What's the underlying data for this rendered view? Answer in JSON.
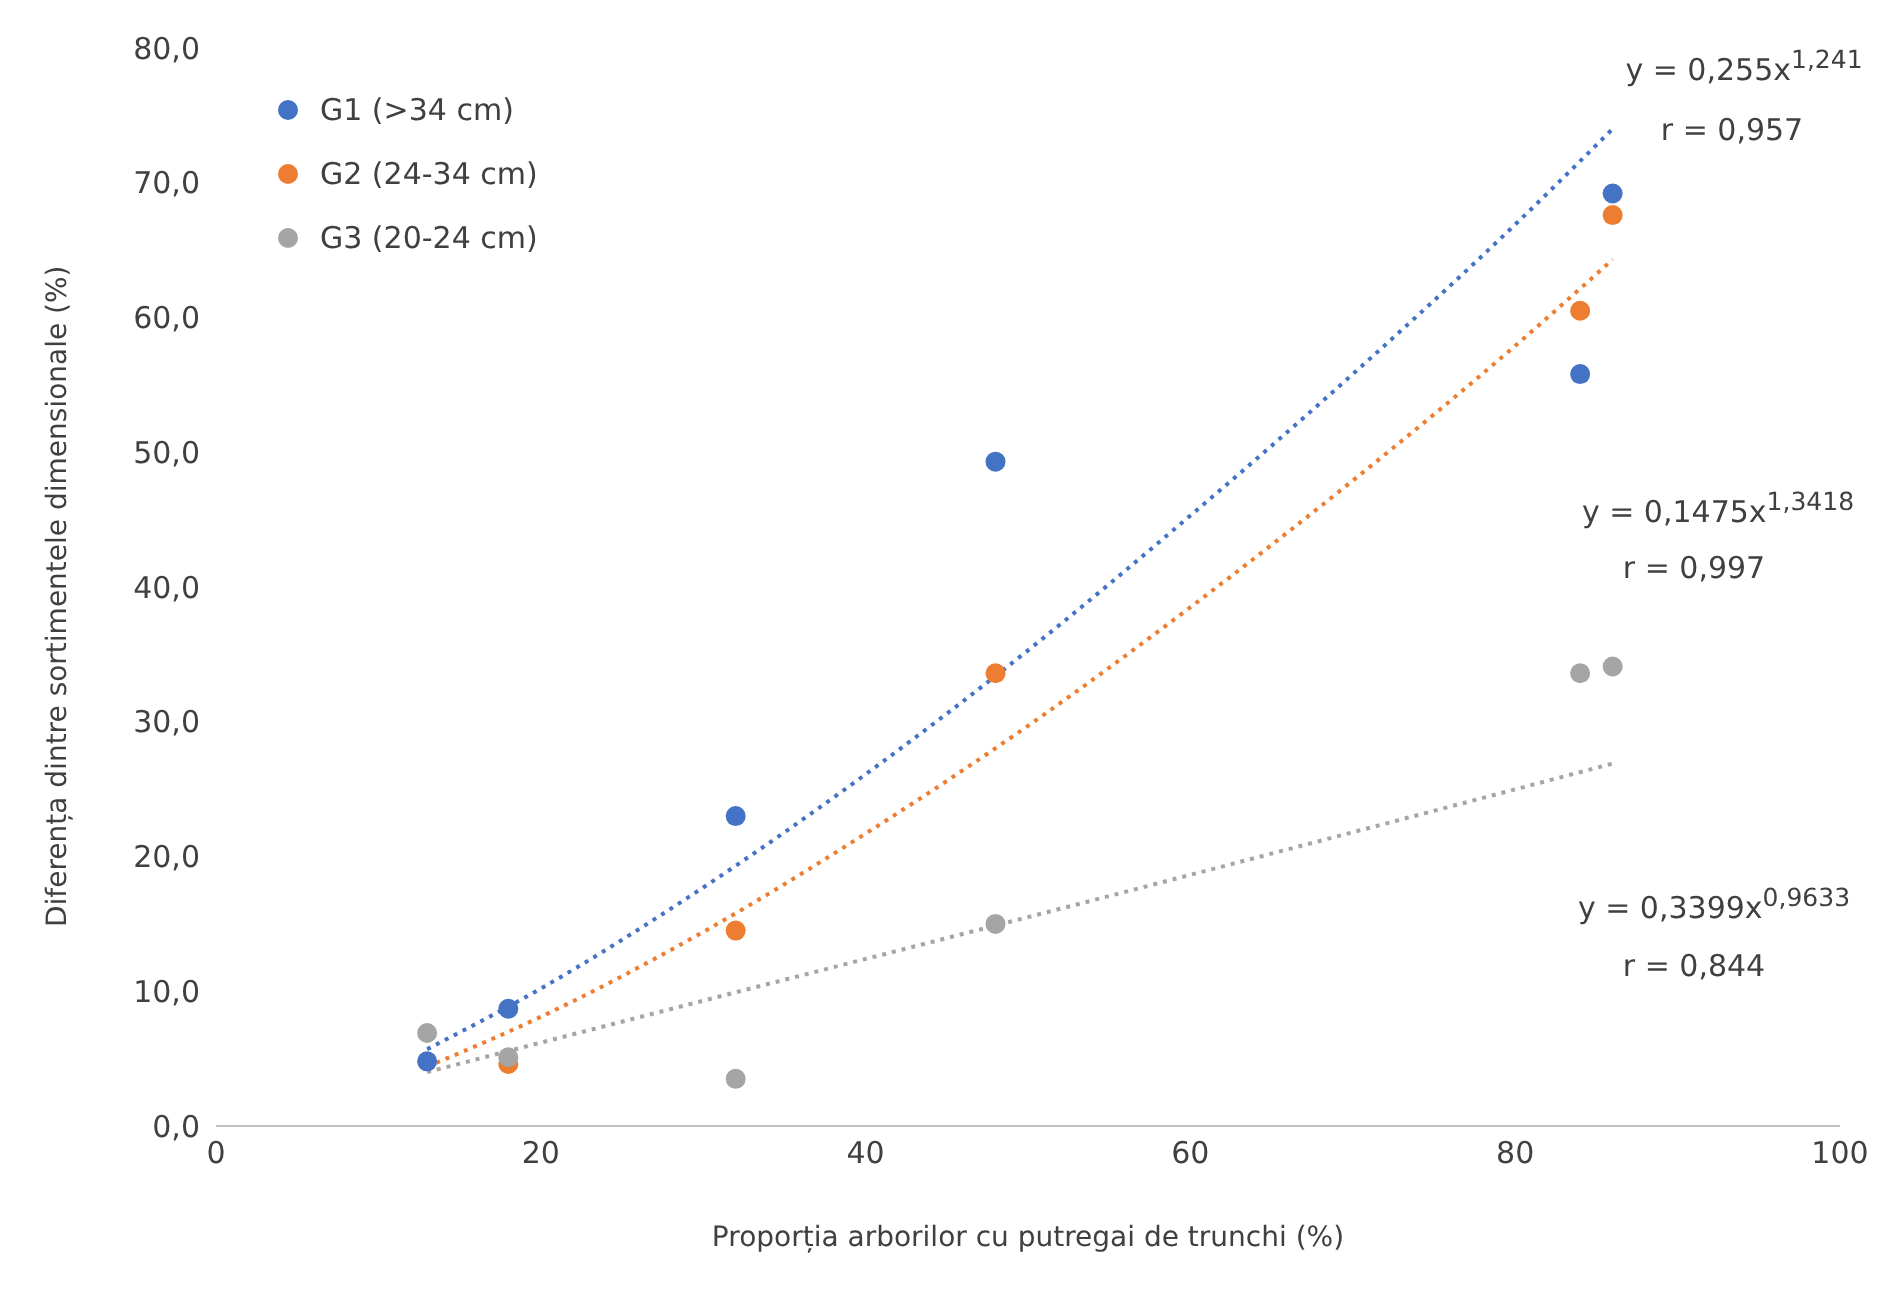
{
  "chart_data": {
    "type": "scatter",
    "xlabel": "Proporția arborilor cu putregai de trunchi (%)",
    "ylabel": "Diferența dintre sortimentele dimensionale (%)",
    "x": [
      13,
      18,
      32,
      48,
      84,
      86
    ],
    "series": [
      {
        "name": "G1 (>34 cm)",
        "color": "#4472c4",
        "values": [
          4.8,
          8.7,
          23.0,
          49.3,
          55.8,
          69.2
        ]
      },
      {
        "name": "G2 (24-34 cm)",
        "color": "#ed7d31",
        "values": [
          null,
          4.6,
          14.5,
          33.6,
          60.5,
          67.6
        ]
      },
      {
        "name": "G3 (20-24 cm)",
        "color": "#a5a5a5",
        "values": [
          6.9,
          5.1,
          3.5,
          15.0,
          33.6,
          34.1
        ]
      },
      {
        "type": "line",
        "color": "#4472c4",
        "x": [
          13,
          20,
          30,
          40,
          50,
          60,
          70,
          80,
          86
        ],
        "values": [
          5.7,
          10.2,
          17.7,
          26.1,
          35.3,
          45.3,
          55.8,
          66.9,
          74.0
        ],
        "marker": "none",
        "line_style": "dotted"
      },
      {
        "type": "line",
        "color": "#ed7d31",
        "x": [
          13,
          20,
          30,
          40,
          50,
          60,
          70,
          80,
          86
        ],
        "values": [
          4.4,
          8.1,
          14.4,
          21.7,
          29.7,
          38.5,
          47.9,
          57.9,
          64.3
        ],
        "marker": "none",
        "line_style": "dotted"
      },
      {
        "type": "line",
        "color": "#a5a5a5",
        "x": [
          13,
          30,
          50,
          70,
          86
        ],
        "values": [
          4.0,
          9.3,
          15.5,
          21.8,
          26.9
        ],
        "marker": "none",
        "line_style": "dotted"
      }
    ],
    "xlim": [
      0,
      100
    ],
    "xticks": [
      0,
      20,
      40,
      60,
      80,
      100
    ],
    "ylim": [
      0,
      80
    ],
    "yticks": [
      {
        "value": 0,
        "label": "0,0"
      },
      {
        "value": 10,
        "label": "10,0"
      },
      {
        "value": 20,
        "label": "20,0"
      },
      {
        "value": 30,
        "label": "30,0"
      },
      {
        "value": 40,
        "label": "40,0"
      },
      {
        "value": 50,
        "label": "50,0"
      },
      {
        "value": 60,
        "label": "60,0"
      },
      {
        "value": 70,
        "label": "70,0"
      },
      {
        "value": 80,
        "label": "80,0"
      }
    ],
    "annotations": [
      "y = 0,255x$^{1,241}$",
      "r = 0,957",
      "y = 0,1475x$^{1,3418}$",
      "r = 0,997",
      "y = 0,3399x$^{0,9633}$",
      "r = 0,844"
    ],
    "grid": false,
    "legend": "top left",
    "marker": "circle"
  }
}
